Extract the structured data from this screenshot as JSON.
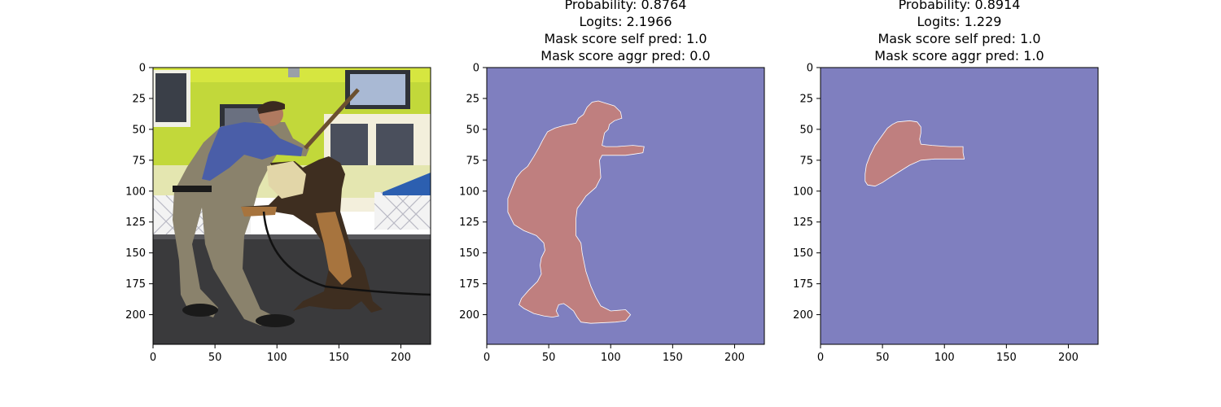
{
  "chart_data": [
    {
      "type": "image",
      "title_lines": [],
      "xlim": [
        0,
        224
      ],
      "ylim": [
        224,
        0
      ],
      "xticks": [
        0,
        50,
        100,
        150,
        200
      ],
      "yticks": [
        0,
        25,
        50,
        75,
        100,
        125,
        150,
        175,
        200
      ],
      "xlabel": "",
      "ylabel": "",
      "image": "photo of a man in a bite suit training a german shepherd dog indoors"
    },
    {
      "type": "heatmap",
      "title_lines": [
        "Probability: 0.8764",
        "Logits: 2.1966",
        "Mask score self pred: 1.0",
        "Mask score aggr pred: 0.0"
      ],
      "probability": 0.8764,
      "logits": 2.1966,
      "mask_score_self_pred": 1.0,
      "mask_score_aggr_pred": 0.0,
      "xlim": [
        0,
        224
      ],
      "ylim": [
        224,
        0
      ],
      "xticks": [
        0,
        50,
        100,
        150,
        200
      ],
      "yticks": [
        0,
        25,
        50,
        75,
        100,
        125,
        150,
        175,
        200
      ],
      "xlabel": "",
      "ylabel": "",
      "background_color": "#7f7fbf",
      "mask_color": "#bf7f7f",
      "mask_outline": [
        [
          90,
          27
        ],
        [
          103,
          31
        ],
        [
          108,
          36
        ],
        [
          109,
          41
        ],
        [
          103,
          43
        ],
        [
          99,
          46
        ],
        [
          98,
          50
        ],
        [
          95,
          53
        ],
        [
          94,
          58
        ],
        [
          93,
          63
        ],
        [
          96,
          64
        ],
        [
          105,
          64
        ],
        [
          118,
          63
        ],
        [
          127,
          64
        ],
        [
          126,
          69
        ],
        [
          119,
          70
        ],
        [
          112,
          71
        ],
        [
          93,
          71
        ],
        [
          91,
          75
        ],
        [
          92,
          89
        ],
        [
          88,
          97
        ],
        [
          80,
          104
        ],
        [
          76,
          110
        ],
        [
          73,
          114
        ],
        [
          72,
          122
        ],
        [
          72,
          136
        ],
        [
          76,
          142
        ],
        [
          77,
          150
        ],
        [
          78,
          155
        ],
        [
          80,
          165
        ],
        [
          84,
          177
        ],
        [
          88,
          186
        ],
        [
          92,
          193
        ],
        [
          100,
          197
        ],
        [
          112,
          196
        ],
        [
          116,
          200
        ],
        [
          112,
          205
        ],
        [
          104,
          206
        ],
        [
          84,
          207
        ],
        [
          76,
          206
        ],
        [
          73,
          202
        ],
        [
          70,
          197
        ],
        [
          65,
          193
        ],
        [
          62,
          191
        ],
        [
          58,
          192
        ],
        [
          56,
          197
        ],
        [
          58,
          201
        ],
        [
          53,
          202
        ],
        [
          46,
          201
        ],
        [
          38,
          199
        ],
        [
          30,
          195
        ],
        [
          26,
          192
        ],
        [
          28,
          187
        ],
        [
          34,
          180
        ],
        [
          41,
          173
        ],
        [
          44,
          167
        ],
        [
          43,
          160
        ],
        [
          44,
          154
        ],
        [
          47,
          148
        ],
        [
          46,
          142
        ],
        [
          40,
          136
        ],
        [
          30,
          132
        ],
        [
          22,
          127
        ],
        [
          17,
          117
        ],
        [
          17,
          106
        ],
        [
          21,
          96
        ],
        [
          24,
          89
        ],
        [
          28,
          84
        ],
        [
          33,
          80
        ],
        [
          38,
          72
        ],
        [
          42,
          65
        ],
        [
          45,
          59
        ],
        [
          49,
          52
        ],
        [
          55,
          49
        ],
        [
          62,
          47
        ],
        [
          72,
          45
        ],
        [
          74,
          41
        ],
        [
          78,
          38
        ],
        [
          81,
          32
        ],
        [
          85,
          28
        ]
      ]
    },
    {
      "type": "heatmap",
      "title_lines": [
        "Probability: 0.8914",
        "Logits: 1.229",
        "Mask score self pred: 1.0",
        "Mask score aggr pred: 1.0"
      ],
      "probability": 0.8914,
      "logits": 1.229,
      "mask_score_self_pred": 1.0,
      "mask_score_aggr_pred": 1.0,
      "xlim": [
        0,
        224
      ],
      "ylim": [
        224,
        0
      ],
      "xticks": [
        0,
        50,
        100,
        150,
        200
      ],
      "yticks": [
        0,
        25,
        50,
        75,
        100,
        125,
        150,
        175,
        200
      ],
      "xlabel": "",
      "ylabel": "",
      "background_color": "#7f7fbf",
      "mask_color": "#bf7f7f",
      "mask_outline": [
        [
          62,
          44
        ],
        [
          72,
          43
        ],
        [
          78,
          44
        ],
        [
          81,
          48
        ],
        [
          81,
          53
        ],
        [
          80,
          58
        ],
        [
          81,
          62
        ],
        [
          90,
          63
        ],
        [
          104,
          64
        ],
        [
          115,
          64
        ],
        [
          115,
          69
        ],
        [
          116,
          74
        ],
        [
          105,
          74
        ],
        [
          92,
          74
        ],
        [
          81,
          75
        ],
        [
          72,
          79
        ],
        [
          64,
          84
        ],
        [
          56,
          89
        ],
        [
          50,
          93
        ],
        [
          44,
          96
        ],
        [
          38,
          95
        ],
        [
          36,
          92
        ],
        [
          36,
          86
        ],
        [
          37,
          79
        ],
        [
          40,
          71
        ],
        [
          44,
          63
        ],
        [
          49,
          56
        ],
        [
          54,
          49
        ],
        [
          58,
          46
        ]
      ]
    }
  ]
}
